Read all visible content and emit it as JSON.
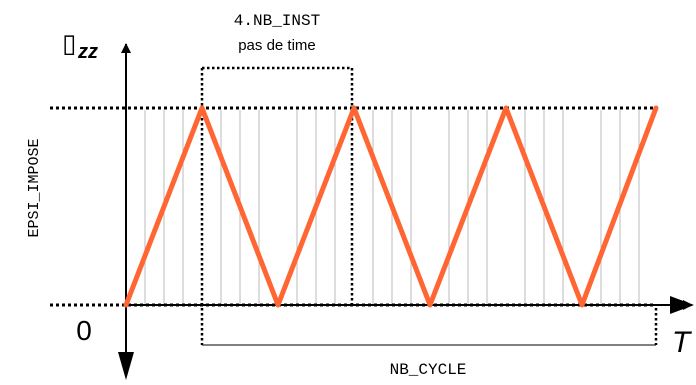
{
  "labels": {
    "y_axis_symbol": "▯",
    "y_axis_subscript": "zz",
    "x_axis": "T",
    "origin": "0",
    "amplitude": "EPSI_IMPOSE",
    "steps_top": "4.NB_INST",
    "steps_bottom": "pas de time",
    "cycles": "NB_CYCLE"
  },
  "colors": {
    "signal": "#ff6633",
    "axis": "#000000",
    "grid": "#bbbbbb"
  },
  "diagram": {
    "waveform": "triangle",
    "cycle_count": 3.5,
    "steps_per_cycle": 4
  }
}
